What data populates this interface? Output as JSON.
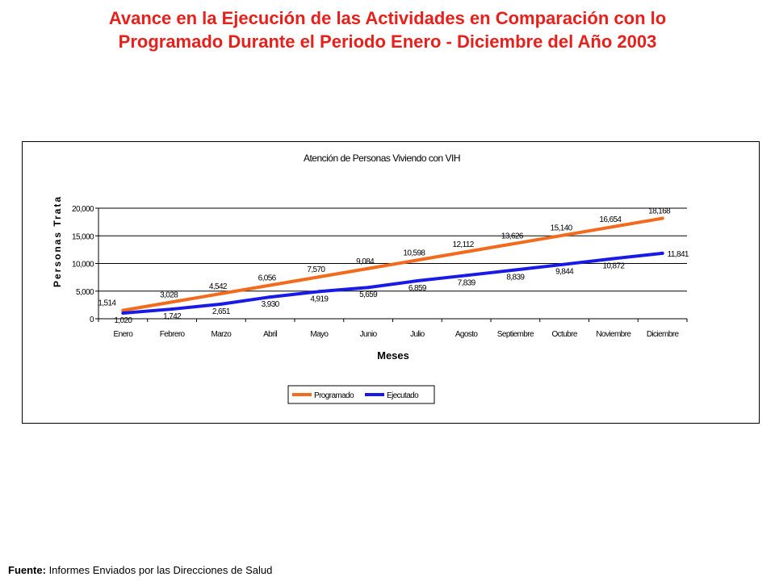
{
  "page": {
    "title_line1": "Avance en la Ejecución de las Actividades en Comparación con lo",
    "title_line2": "Programado Durante el Periodo Enero - Diciembre del Año 2003",
    "title_color": "#e8201c",
    "source_label": "Fuente:",
    "source_text": " Informes Enviados por las Direcciones de Salud"
  },
  "chart_data": {
    "type": "line",
    "title": "Atención de Personas Viviendo con VIH",
    "xlabel": "Meses",
    "ylabel": "Personas Tratadas",
    "ylabel_visible": "Personas Trata",
    "categories": [
      "Enero",
      "Febrero",
      "Marzo",
      "Abril",
      "Mayo",
      "Junio",
      "Julio",
      "Agosto",
      "Septiembre",
      "Octubre",
      "Noviembre",
      "Diciembre"
    ],
    "ylim": [
      0,
      20000
    ],
    "yticks": [
      0,
      5000,
      10000,
      15000,
      20000
    ],
    "ytick_labels": [
      "0",
      "5,000",
      "10,000",
      "15,000",
      "20,000"
    ],
    "grid": true,
    "legend_position": "bottom",
    "series": [
      {
        "name": "Programado",
        "color": "#f26b1d",
        "values": [
          1514,
          3028,
          4542,
          6056,
          7570,
          9084,
          10598,
          12112,
          13626,
          15140,
          16654,
          18168
        ],
        "labels": [
          "1,514",
          "3,028",
          "4,542",
          "6,056",
          "7,570",
          "9,084",
          "10,598",
          "12,112",
          "13,626",
          "15,140",
          "16,654",
          "18,168"
        ]
      },
      {
        "name": "Ejecutado",
        "color": "#1a1ae6",
        "values": [
          1020,
          1742,
          2651,
          3930,
          4919,
          5659,
          6859,
          7839,
          8839,
          9844,
          10872,
          11841
        ],
        "labels": [
          "1,020",
          "1,742",
          "2,651",
          "3,930",
          "4,919",
          "5,659",
          "6,859",
          "7,839",
          "8,839",
          "9,844",
          "10,872",
          "11,841"
        ]
      }
    ]
  }
}
